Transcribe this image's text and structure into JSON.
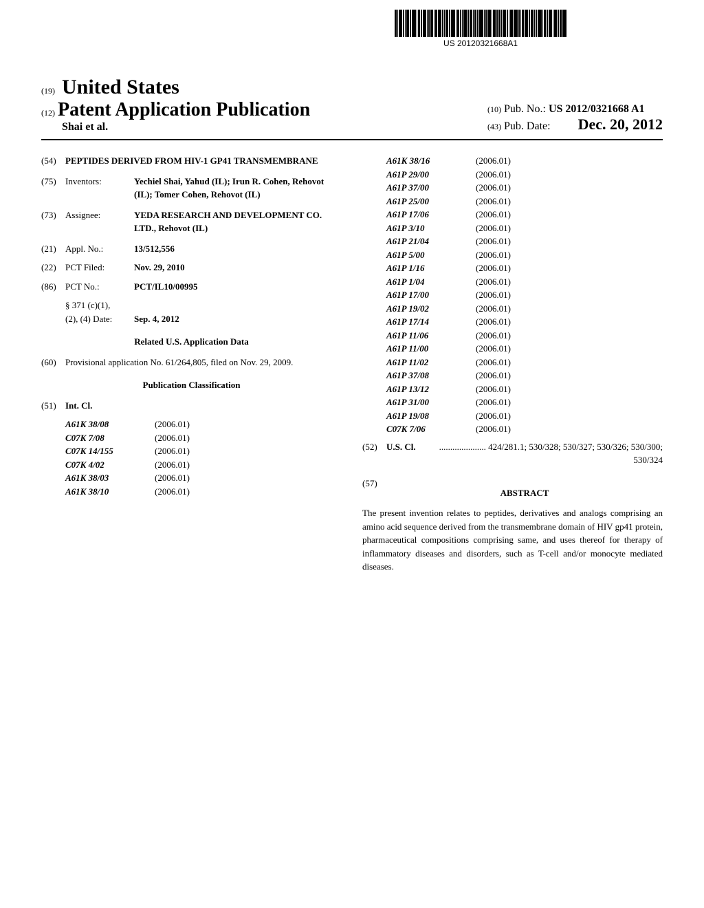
{
  "barcode": {
    "text": "US 20120321668A1"
  },
  "header": {
    "country_num": "(19)",
    "country": "United States",
    "pub_num": "(12)",
    "pub_title": "Patent Application Publication",
    "authors": "Shai et al.",
    "pubno_num": "(10)",
    "pubno_label": "Pub. No.:",
    "pubno_val": "US 2012/0321668 A1",
    "pubdate_num": "(43)",
    "pubdate_label": "Pub. Date:",
    "pubdate_val": "Dec. 20, 2012"
  },
  "left": {
    "title": {
      "num": "(54)",
      "val": "PEPTIDES DERIVED FROM HIV-1 GP41 TRANSMEMBRANE"
    },
    "inventors": {
      "num": "(75)",
      "label": "Inventors:",
      "val": "Yechiel Shai, Yahud (IL); Irun R. Cohen, Rehovot (IL); Tomer Cohen, Rehovot (IL)"
    },
    "assignee": {
      "num": "(73)",
      "label": "Assignee:",
      "val": "YEDA RESEARCH AND DEVELOPMENT CO. LTD., Rehovot (IL)"
    },
    "applno": {
      "num": "(21)",
      "label": "Appl. No.:",
      "val": "13/512,556"
    },
    "pctfiled": {
      "num": "(22)",
      "label": "PCT Filed:",
      "val": "Nov. 29, 2010"
    },
    "pctno": {
      "num": "(86)",
      "label": "PCT No.:",
      "val": "PCT/IL10/00995"
    },
    "s371": {
      "label1": "§ 371 (c)(1),",
      "label2": "(2), (4) Date:",
      "val": "Sep. 4, 2012"
    },
    "related_header": "Related U.S. Application Data",
    "provisional": {
      "num": "(60)",
      "val": "Provisional application No. 61/264,805, filed on Nov. 29, 2009."
    },
    "pubclass_header": "Publication Classification",
    "intcl": {
      "num": "(51)",
      "label": "Int. Cl."
    },
    "ipc_left": [
      {
        "code": "A61K 38/08",
        "date": "(2006.01)"
      },
      {
        "code": "C07K 7/08",
        "date": "(2006.01)"
      },
      {
        "code": "C07K 14/155",
        "date": "(2006.01)"
      },
      {
        "code": "C07K 4/02",
        "date": "(2006.01)"
      },
      {
        "code": "A61K 38/03",
        "date": "(2006.01)"
      },
      {
        "code": "A61K 38/10",
        "date": "(2006.01)"
      }
    ]
  },
  "right": {
    "ipc": [
      {
        "code": "A61K 38/16",
        "date": "(2006.01)"
      },
      {
        "code": "A61P 29/00",
        "date": "(2006.01)"
      },
      {
        "code": "A61P 37/00",
        "date": "(2006.01)"
      },
      {
        "code": "A61P 25/00",
        "date": "(2006.01)"
      },
      {
        "code": "A61P 17/06",
        "date": "(2006.01)"
      },
      {
        "code": "A61P 3/10",
        "date": "(2006.01)"
      },
      {
        "code": "A61P 21/04",
        "date": "(2006.01)"
      },
      {
        "code": "A61P 5/00",
        "date": "(2006.01)"
      },
      {
        "code": "A61P 1/16",
        "date": "(2006.01)"
      },
      {
        "code": "A61P 1/04",
        "date": "(2006.01)"
      },
      {
        "code": "A61P 17/00",
        "date": "(2006.01)"
      },
      {
        "code": "A61P 19/02",
        "date": "(2006.01)"
      },
      {
        "code": "A61P 17/14",
        "date": "(2006.01)"
      },
      {
        "code": "A61P 11/06",
        "date": "(2006.01)"
      },
      {
        "code": "A61P 11/00",
        "date": "(2006.01)"
      },
      {
        "code": "A61P 11/02",
        "date": "(2006.01)"
      },
      {
        "code": "A61P 37/08",
        "date": "(2006.01)"
      },
      {
        "code": "A61P 13/12",
        "date": "(2006.01)"
      },
      {
        "code": "A61P 31/00",
        "date": "(2006.01)"
      },
      {
        "code": "A61P 19/08",
        "date": "(2006.01)"
      },
      {
        "code": "C07K 7/06",
        "date": "(2006.01)"
      }
    ],
    "uscl": {
      "num": "(52)",
      "label": "U.S. Cl.",
      "val": "..................... 424/281.1; 530/328; 530/327; 530/326; 530/300; 530/324"
    },
    "abstract_num": "(57)",
    "abstract_header": "ABSTRACT",
    "abstract_text": "The present invention relates to peptides, derivatives and analogs comprising an amino acid sequence derived from the transmembrane domain of HIV gp41 protein, pharmaceutical compositions comprising same, and uses thereof for therapy of inflammatory diseases and disorders, such as T-cell and/or monocyte mediated diseases."
  }
}
